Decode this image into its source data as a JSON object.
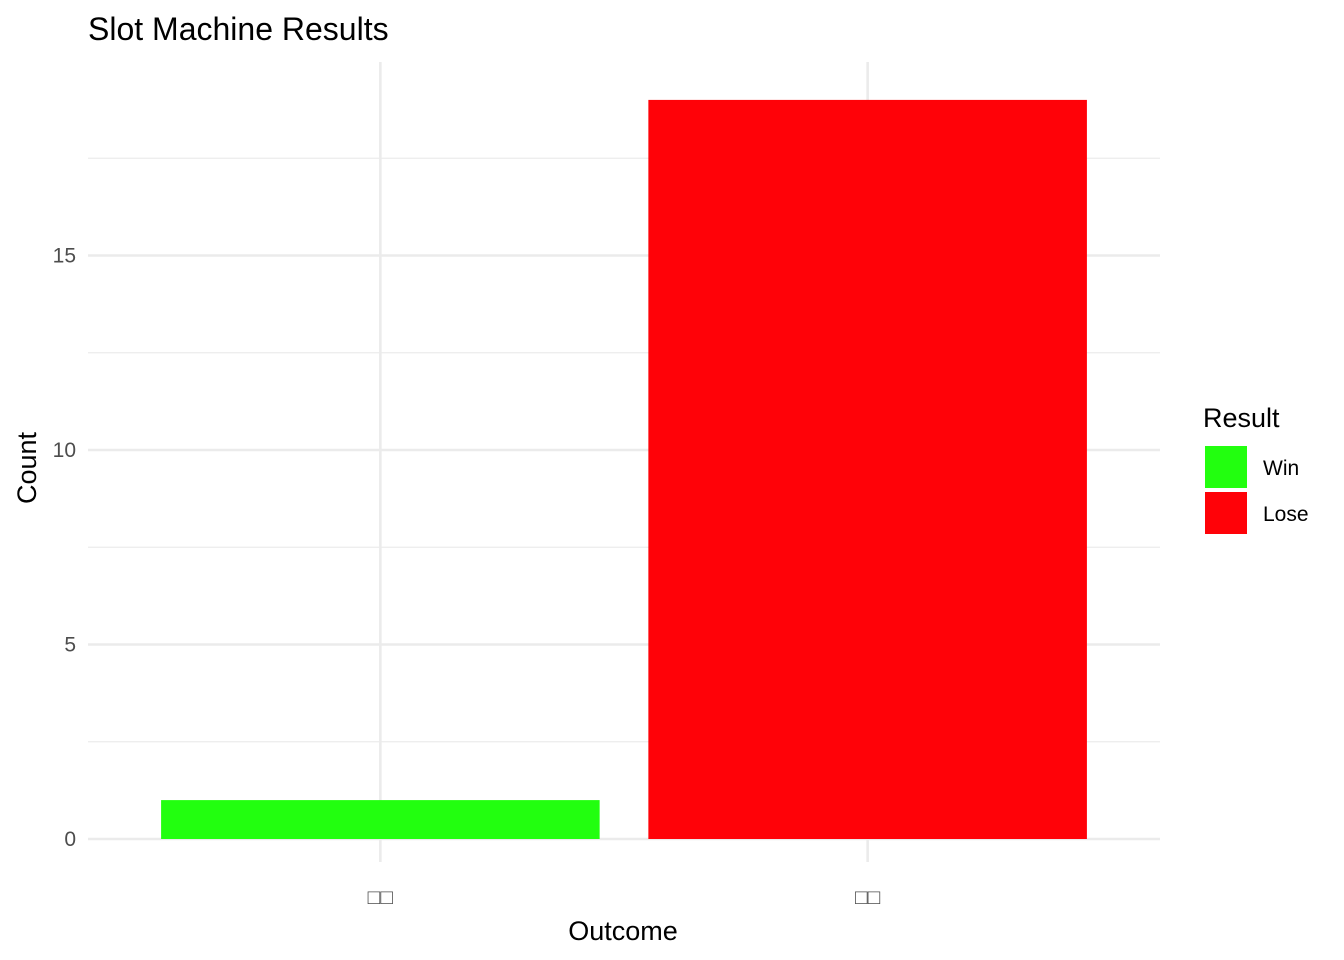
{
  "chart_data": {
    "type": "bar",
    "title": "Slot Machine Results",
    "xlabel": "Outcome",
    "ylabel": "Count",
    "categories": [
      "□□",
      "□□"
    ],
    "values": [
      1,
      19
    ],
    "bar_colors": [
      "#22ff0f",
      "#ff0208"
    ],
    "ylim": [
      0,
      20
    ],
    "yticks": [
      0,
      5,
      10,
      15
    ],
    "grid": true,
    "legend": {
      "title": "Result",
      "placement": "right",
      "entries": [
        {
          "label": "Win",
          "color": "#22ff0f"
        },
        {
          "label": "Lose",
          "color": "#ff0208"
        }
      ]
    }
  }
}
